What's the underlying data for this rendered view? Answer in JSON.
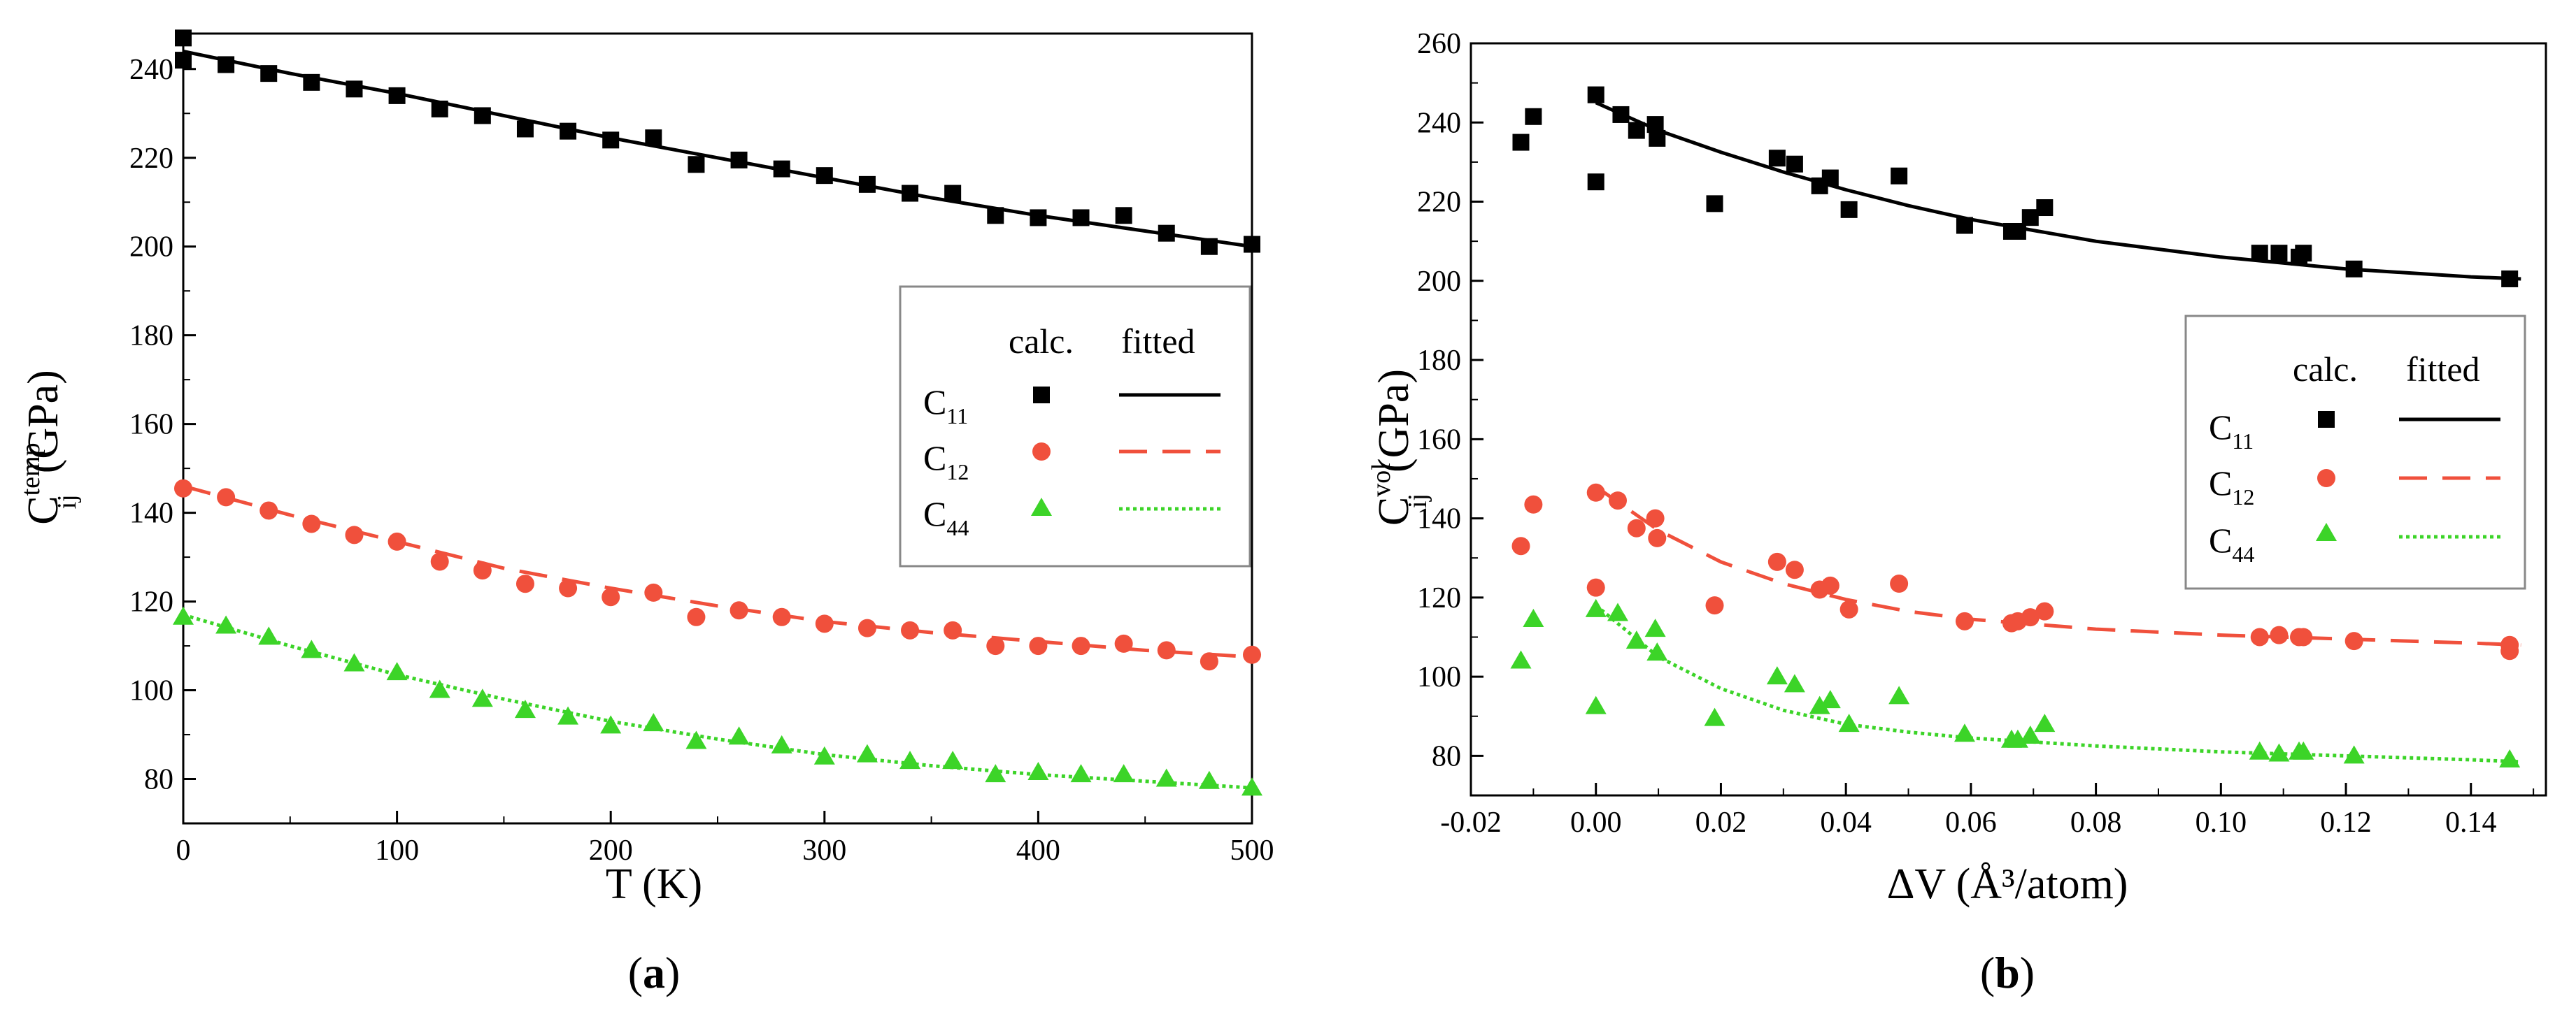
{
  "colors": {
    "c11": "#000000",
    "c12": "#f0503c",
    "c44": "#3cd428"
  },
  "chart_data": [
    {
      "type": "scatter",
      "panel": "a",
      "caption": "a",
      "xlabel": "T (K)",
      "ylabel_main": "C",
      "ylabel_sup": "temp",
      "ylabel_sub": "ij",
      "ylabel_unit": "(GPa)",
      "xlim": [
        0,
        500
      ],
      "ylim": [
        70,
        248
      ],
      "xticks": [
        0,
        100,
        200,
        300,
        400,
        500
      ],
      "xtick_labels": [
        "0",
        "100",
        "200",
        "300",
        "400",
        "500"
      ],
      "yticks": [
        80,
        100,
        120,
        140,
        160,
        180,
        200,
        220,
        240
      ],
      "ytick_labels": [
        "80",
        "100",
        "120",
        "140",
        "160",
        "180",
        "200",
        "220",
        "240"
      ],
      "legend": {
        "position": "center-right",
        "header_calc": "calc.",
        "header_fitted": "fitted",
        "entries": [
          {
            "main": "C",
            "sub": "11"
          },
          {
            "main": "C",
            "sub": "12"
          },
          {
            "main": "C",
            "sub": "44"
          }
        ]
      },
      "series": [
        {
          "name": "C11",
          "marker": "square",
          "line": "solid",
          "x": [
            0,
            0,
            20,
            40,
            60,
            80,
            100,
            120,
            140,
            160,
            180,
            200,
            220,
            240,
            260,
            280,
            300,
            320,
            340,
            360,
            380,
            400,
            420,
            440,
            460,
            480,
            500
          ],
          "y": [
            247,
            242,
            241,
            239,
            237,
            235.5,
            234,
            231,
            229.5,
            226.5,
            226,
            224,
            224.5,
            218.5,
            219.5,
            217.5,
            216,
            214,
            212,
            212,
            207,
            206.5,
            206.5,
            207,
            203,
            200,
            200.5
          ],
          "fit_x": [
            0,
            50,
            100,
            150,
            200,
            250,
            300,
            350,
            400,
            450,
            500
          ],
          "fit_y": [
            244,
            239,
            234.5,
            229.5,
            224.5,
            220,
            215.5,
            211,
            207,
            203.5,
            200
          ]
        },
        {
          "name": "C12",
          "marker": "circle",
          "line": "dashed",
          "x": [
            0,
            20,
            40,
            60,
            80,
            100,
            120,
            140,
            160,
            180,
            200,
            220,
            240,
            260,
            280,
            300,
            320,
            340,
            360,
            380,
            400,
            420,
            440,
            460,
            480,
            500
          ],
          "y": [
            145.5,
            143.5,
            140.5,
            137.5,
            135,
            133.5,
            129,
            127,
            124,
            123,
            121,
            122,
            116.5,
            118,
            116.5,
            115,
            114,
            113.5,
            113.5,
            110,
            110,
            110,
            110.5,
            109,
            106.5,
            108
          ],
          "fit_x": [
            0,
            50,
            100,
            150,
            200,
            250,
            300,
            350,
            400,
            450,
            500
          ],
          "fit_y": [
            146,
            139.5,
            133.5,
            127.5,
            123,
            119,
            115.5,
            113,
            111,
            109,
            107.5
          ]
        },
        {
          "name": "C44",
          "marker": "triangle",
          "line": "dotted",
          "x": [
            0,
            20,
            40,
            60,
            80,
            100,
            120,
            140,
            160,
            180,
            200,
            220,
            240,
            260,
            280,
            300,
            320,
            340,
            360,
            380,
            400,
            420,
            440,
            460,
            480,
            500
          ],
          "y": [
            116.5,
            114.5,
            112,
            109,
            106,
            104,
            100,
            98,
            95.5,
            94,
            92,
            92.5,
            88.5,
            89.5,
            87.5,
            85,
            85.5,
            84,
            84,
            81,
            81.5,
            81,
            81,
            80,
            79.5,
            78
          ],
          "fit_x": [
            0,
            50,
            100,
            150,
            200,
            250,
            300,
            350,
            400,
            450,
            500
          ],
          "fit_y": [
            117,
            110,
            103.5,
            98,
            93,
            89,
            85.5,
            83,
            81,
            79.5,
            78
          ]
        }
      ]
    },
    {
      "type": "scatter",
      "panel": "b",
      "caption": "b",
      "xlabel": "ΔV (Å³/atom)",
      "ylabel_main": "C",
      "ylabel_sup": "vol",
      "ylabel_sub": "ij",
      "ylabel_unit": "(GPa)",
      "xlim": [
        -0.02,
        0.152
      ],
      "ylim": [
        70,
        260
      ],
      "xticks": [
        -0.02,
        0.0,
        0.02,
        0.04,
        0.06,
        0.08,
        0.1,
        0.12,
        0.14
      ],
      "xtick_labels": [
        "-0.02",
        "0.00",
        "0.02",
        "0.04",
        "0.06",
        "0.08",
        "0.10",
        "0.12",
        "0.14"
      ],
      "yticks": [
        80,
        100,
        120,
        140,
        160,
        180,
        200,
        220,
        240,
        260
      ],
      "ytick_labels": [
        "80",
        "100",
        "120",
        "140",
        "160",
        "180",
        "200",
        "220",
        "240",
        "260"
      ],
      "legend": {
        "position": "center-right",
        "header_calc": "calc.",
        "header_fitted": "fitted",
        "entries": [
          {
            "main": "C",
            "sub": "11"
          },
          {
            "main": "C",
            "sub": "12"
          },
          {
            "main": "C",
            "sub": "44"
          }
        ]
      },
      "series": [
        {
          "name": "C11",
          "marker": "square",
          "line": "solid",
          "x": [
            -0.012,
            -0.01,
            0.0,
            0.0,
            0.004,
            0.0065,
            0.0095,
            0.0098,
            0.019,
            0.029,
            0.0318,
            0.0358,
            0.0375,
            0.0405,
            0.0485,
            0.059,
            0.0665,
            0.0675,
            0.0695,
            0.0718,
            0.1062,
            0.1093,
            0.1125,
            0.1132,
            0.1213,
            0.1462
          ],
          "y": [
            235,
            241.5,
            247,
            225,
            242,
            238,
            239.5,
            236,
            219.5,
            231,
            229.5,
            224,
            226,
            218,
            226.5,
            214,
            212.5,
            212.5,
            216,
            218.5,
            207,
            207,
            206,
            207,
            203,
            200.5
          ],
          "fit_x": [
            0.0,
            0.01,
            0.02,
            0.03,
            0.04,
            0.05,
            0.06,
            0.08,
            0.1,
            0.12,
            0.14,
            0.148
          ],
          "fit_y": [
            245,
            238,
            232.5,
            227.5,
            223,
            219,
            215.5,
            210,
            206,
            203,
            201,
            200.5
          ]
        },
        {
          "name": "C12",
          "marker": "circle",
          "line": "dashed",
          "x": [
            -0.012,
            -0.01,
            0.0,
            0.0,
            0.0035,
            0.0065,
            0.0095,
            0.0098,
            0.019,
            0.029,
            0.0318,
            0.0358,
            0.0375,
            0.0405,
            0.0485,
            0.059,
            0.0665,
            0.0675,
            0.0695,
            0.0718,
            0.1062,
            0.1093,
            0.1125,
            0.1132,
            0.1213,
            0.1462,
            0.1462
          ],
          "y": [
            133,
            143.5,
            146.5,
            122.5,
            144.5,
            137.5,
            140,
            135,
            118,
            129,
            127,
            122,
            123,
            117,
            123.5,
            114,
            113.5,
            114,
            115,
            116.5,
            110,
            110.5,
            110,
            110,
            109,
            108,
            106.5
          ],
          "fit_x": [
            0.0,
            0.01,
            0.02,
            0.03,
            0.04,
            0.05,
            0.06,
            0.08,
            0.1,
            0.12,
            0.14,
            0.148
          ],
          "fit_y": [
            148,
            137,
            129,
            123.5,
            119.5,
            116.5,
            114.5,
            112,
            110.5,
            109.5,
            108.5,
            108
          ]
        },
        {
          "name": "C44",
          "marker": "triangle",
          "line": "dotted",
          "x": [
            -0.012,
            -0.01,
            0.0,
            0.0,
            0.0035,
            0.0065,
            0.0095,
            0.0098,
            0.019,
            0.029,
            0.0318,
            0.0358,
            0.0375,
            0.0405,
            0.0485,
            0.059,
            0.0665,
            0.0675,
            0.0695,
            0.0718,
            0.1062,
            0.1093,
            0.1125,
            0.1132,
            0.1213,
            0.1462
          ],
          "y": [
            104,
            114.5,
            117,
            92.5,
            116,
            109,
            112,
            106,
            89.5,
            100,
            98,
            92.5,
            94,
            88,
            95,
            85.5,
            84,
            84,
            85,
            88,
            81,
            80.5,
            81,
            81,
            80,
            79
          ],
          "fit_x": [
            0.0,
            0.01,
            0.02,
            0.03,
            0.04,
            0.05,
            0.06,
            0.08,
            0.1,
            0.12,
            0.14,
            0.148
          ],
          "fit_y": [
            118,
            105,
            97,
            91.5,
            88,
            86,
            84.5,
            82.5,
            81,
            80,
            79,
            78.5
          ]
        }
      ]
    }
  ]
}
